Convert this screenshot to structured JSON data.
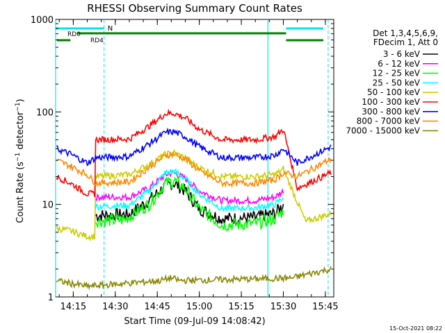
{
  "chart_data": {
    "type": "line",
    "title": "RHESSI Observing Summary Count Rates",
    "xlabel": "Start Time (09-Jul-09 14:08:42)",
    "ylabel": "Count Rate (s⁻¹ detector⁻¹)",
    "y_scale": "log",
    "ylim": [
      1,
      1000
    ],
    "xlim": [
      "14:08:42",
      "15:48:00"
    ],
    "x_ticks": [
      "14:15",
      "14:30",
      "14:45",
      "15:00",
      "15:15",
      "15:30",
      "15:45"
    ],
    "y_ticks": [
      "1",
      "10",
      "100",
      "1000"
    ],
    "legend_header": [
      "Det 1,3,4,5,6,9,",
      "FDecim 1, Att 0"
    ],
    "legend_position": "right",
    "series": [
      {
        "name": "3 - 6 keV",
        "color": "#000000",
        "points": [
          [
            "14:23",
            7.6
          ],
          [
            "14:35",
            7.8
          ],
          [
            "14:42",
            11
          ],
          [
            "14:48",
            16
          ],
          [
            "14:51",
            17
          ],
          [
            "14:55",
            14
          ],
          [
            "15:00",
            9
          ],
          [
            "15:08",
            7.0
          ],
          [
            "15:20",
            7.2
          ],
          [
            "15:27",
            8.0
          ],
          [
            "15:30",
            10
          ]
        ]
      },
      {
        "name": "6 - 12 keV",
        "color": "#ff00ff",
        "points": [
          [
            "14:23",
            12
          ],
          [
            "14:35",
            12
          ],
          [
            "14:42",
            15
          ],
          [
            "14:48",
            21
          ],
          [
            "14:51",
            22
          ],
          [
            "14:55",
            19
          ],
          [
            "15:00",
            14
          ],
          [
            "15:08",
            11
          ],
          [
            "15:20",
            11
          ],
          [
            "15:27",
            12
          ],
          [
            "15:30",
            14
          ]
        ]
      },
      {
        "name": "12 - 25 keV",
        "color": "#00ff00",
        "points": [
          [
            "14:23",
            6.6
          ],
          [
            "14:33",
            6.8
          ],
          [
            "14:42",
            10
          ],
          [
            "14:48",
            17
          ],
          [
            "14:51",
            18
          ],
          [
            "14:55",
            15
          ],
          [
            "15:00",
            9
          ],
          [
            "15:08",
            6.0
          ],
          [
            "15:20",
            6.2
          ],
          [
            "15:27",
            7.0
          ],
          [
            "15:30",
            8.5
          ]
        ]
      },
      {
        "name": "25 - 50 keV",
        "color": "#00ffff",
        "points": [
          [
            "14:23",
            9.5
          ],
          [
            "14:35",
            9.8
          ],
          [
            "14:42",
            14
          ],
          [
            "14:48",
            22
          ],
          [
            "14:51",
            23
          ],
          [
            "14:55",
            19
          ],
          [
            "15:00",
            13
          ],
          [
            "15:08",
            9.0
          ],
          [
            "15:20",
            9.2
          ],
          [
            "15:27",
            10
          ],
          [
            "15:30",
            12
          ]
        ]
      },
      {
        "name": "50 - 100 keV",
        "color": "#cccc00",
        "points": [
          [
            "14:09",
            5.5
          ],
          [
            "14:14",
            5.2
          ],
          [
            "14:20",
            4.5
          ],
          [
            "14:23",
            20
          ],
          [
            "14:35",
            21
          ],
          [
            "14:42",
            27
          ],
          [
            "14:48",
            35
          ],
          [
            "14:51",
            36
          ],
          [
            "14:55",
            32
          ],
          [
            "15:00",
            25
          ],
          [
            "15:08",
            20
          ],
          [
            "15:20",
            20
          ],
          [
            "15:27",
            21
          ],
          [
            "15:30",
            24
          ],
          [
            "15:38",
            6.5
          ],
          [
            "15:47",
            8
          ]
        ]
      },
      {
        "name": "100 - 300 keV",
        "color": "#ff0000",
        "points": [
          [
            "14:09",
            20
          ],
          [
            "14:14",
            17
          ],
          [
            "14:20",
            13
          ],
          [
            "14:23",
            50
          ],
          [
            "14:35",
            51
          ],
          [
            "14:42",
            70
          ],
          [
            "14:48",
            96
          ],
          [
            "14:51",
            97
          ],
          [
            "14:55",
            86
          ],
          [
            "15:00",
            65
          ],
          [
            "15:08",
            50
          ],
          [
            "15:20",
            50
          ],
          [
            "15:27",
            54
          ],
          [
            "15:30",
            65
          ],
          [
            "15:35",
            15
          ],
          [
            "15:47",
            22
          ]
        ]
      },
      {
        "name": "300 - 800 keV",
        "color": "#0000ff",
        "points": [
          [
            "14:09",
            40
          ],
          [
            "14:14",
            35
          ],
          [
            "14:20",
            28
          ],
          [
            "14:23",
            32
          ],
          [
            "14:35",
            33
          ],
          [
            "14:42",
            45
          ],
          [
            "14:48",
            60
          ],
          [
            "14:51",
            61
          ],
          [
            "14:55",
            54
          ],
          [
            "15:00",
            42
          ],
          [
            "15:08",
            32
          ],
          [
            "15:20",
            32
          ],
          [
            "15:27",
            34
          ],
          [
            "15:30",
            40
          ],
          [
            "15:35",
            28
          ],
          [
            "15:47",
            42
          ]
        ]
      },
      {
        "name": "800 - 7000 keV",
        "color": "#ff8800",
        "points": [
          [
            "14:09",
            30
          ],
          [
            "14:14",
            26
          ],
          [
            "14:20",
            21
          ],
          [
            "14:23",
            17
          ],
          [
            "14:35",
            17.5
          ],
          [
            "14:42",
            25
          ],
          [
            "14:48",
            34
          ],
          [
            "14:51",
            35
          ],
          [
            "14:55",
            31
          ],
          [
            "15:00",
            23
          ],
          [
            "15:08",
            17
          ],
          [
            "15:20",
            17
          ],
          [
            "15:27",
            18.5
          ],
          [
            "15:30",
            22
          ],
          [
            "15:35",
            20
          ],
          [
            "15:47",
            31
          ]
        ]
      },
      {
        "name": "7000 - 15000 keV",
        "color": "#888800",
        "points": [
          [
            "14:09",
            1.5
          ],
          [
            "14:14",
            1.4
          ],
          [
            "14:20",
            1.3
          ],
          [
            "14:46",
            1.5
          ],
          [
            "14:50",
            1.6
          ],
          [
            "14:53",
            1.5
          ],
          [
            "15:33",
            1.6
          ],
          [
            "15:40",
            1.8
          ],
          [
            "15:47",
            2.0
          ]
        ]
      }
    ],
    "annotations": {
      "attenuator_label": "N",
      "rd_labels": [
        "RD0",
        "RD4"
      ]
    },
    "footer_timestamp": "15-Oct-2021 08:22"
  }
}
